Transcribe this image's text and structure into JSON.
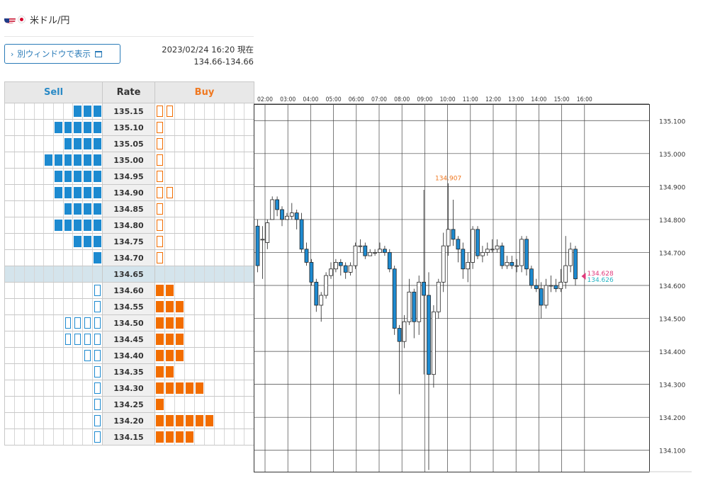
{
  "header": {
    "pair_title": "米ドル/円",
    "separate_window_label": "別ウィンドウで表示",
    "timestamp": "2023/02/24 16:20 現在",
    "range": "134.66-134.66"
  },
  "colors": {
    "sell": "#1d8ad0",
    "buy": "#f26d00",
    "current_row": "#d4e4ec",
    "candle_down": "#1d8ad0",
    "candle_up": "#ffffff",
    "bid_marker": "#e0397b",
    "ask_marker": "#26b5c4",
    "high_label": "#f07820"
  },
  "order_book": {
    "headers": {
      "sell": "Sell",
      "rate": "Rate",
      "buy": "Buy"
    },
    "current_rate": "134.65",
    "rows": [
      {
        "rate": "135.15",
        "sell": 3,
        "sell_outline": 0,
        "buy": 0,
        "buy_outline": 2
      },
      {
        "rate": "135.10",
        "sell": 5,
        "sell_outline": 0,
        "buy": 0,
        "buy_outline": 1
      },
      {
        "rate": "135.05",
        "sell": 4,
        "sell_outline": 0,
        "buy": 0,
        "buy_outline": 1
      },
      {
        "rate": "135.00",
        "sell": 6,
        "sell_outline": 0,
        "buy": 0,
        "buy_outline": 1
      },
      {
        "rate": "134.95",
        "sell": 5,
        "sell_outline": 0,
        "buy": 0,
        "buy_outline": 1
      },
      {
        "rate": "134.90",
        "sell": 5,
        "sell_outline": 0,
        "buy": 0,
        "buy_outline": 2
      },
      {
        "rate": "134.85",
        "sell": 4,
        "sell_outline": 0,
        "buy": 0,
        "buy_outline": 1
      },
      {
        "rate": "134.80",
        "sell": 5,
        "sell_outline": 0,
        "buy": 0,
        "buy_outline": 1
      },
      {
        "rate": "134.75",
        "sell": 3,
        "sell_outline": 0,
        "buy": 0,
        "buy_outline": 1
      },
      {
        "rate": "134.70",
        "sell": 1,
        "sell_outline": 0,
        "buy": 0,
        "buy_outline": 1
      },
      {
        "rate": "134.65",
        "sell": 0,
        "sell_outline": 0,
        "buy": 0,
        "buy_outline": 0
      },
      {
        "rate": "134.60",
        "sell": 0,
        "sell_outline": 1,
        "buy": 2,
        "buy_outline": 0
      },
      {
        "rate": "134.55",
        "sell": 0,
        "sell_outline": 1,
        "buy": 3,
        "buy_outline": 0
      },
      {
        "rate": "134.50",
        "sell": 0,
        "sell_outline": 4,
        "buy": 3,
        "buy_outline": 0
      },
      {
        "rate": "134.45",
        "sell": 0,
        "sell_outline": 4,
        "buy": 3,
        "buy_outline": 0
      },
      {
        "rate": "134.40",
        "sell": 0,
        "sell_outline": 2,
        "buy": 3,
        "buy_outline": 0
      },
      {
        "rate": "134.35",
        "sell": 0,
        "sell_outline": 1,
        "buy": 2,
        "buy_outline": 0
      },
      {
        "rate": "134.30",
        "sell": 0,
        "sell_outline": 1,
        "buy": 5,
        "buy_outline": 0
      },
      {
        "rate": "134.25",
        "sell": 0,
        "sell_outline": 1,
        "buy": 1,
        "buy_outline": 0
      },
      {
        "rate": "134.20",
        "sell": 0,
        "sell_outline": 1,
        "buy": 6,
        "buy_outline": 0
      },
      {
        "rate": "134.15",
        "sell": 0,
        "sell_outline": 1,
        "buy": 4,
        "buy_outline": 0
      }
    ]
  },
  "chart_data": {
    "type": "candlestick",
    "x_ticks": [
      "02:00",
      "03:00",
      "04:00",
      "05:00",
      "06:00",
      "07:00",
      "08:00",
      "09:00",
      "10:00",
      "11:00",
      "12:00",
      "13:00",
      "14:00",
      "15:00",
      "16:00"
    ],
    "y_ticks": [
      "135.100",
      "135.000",
      "134.900",
      "134.800",
      "134.700",
      "134.600",
      "134.500",
      "134.400",
      "134.300",
      "134.200",
      "134.100"
    ],
    "ylim": [
      134.035,
      135.15
    ],
    "high_label": "134.907",
    "bid": "134.628",
    "ask": "134.626",
    "candles": [
      [
        134.78,
        134.66,
        134.8,
        134.64
      ],
      [
        134.74,
        134.74,
        134.78,
        134.62
      ],
      [
        134.73,
        134.79,
        134.8,
        134.71
      ],
      [
        134.8,
        134.86,
        134.87,
        134.8
      ],
      [
        134.86,
        134.83,
        134.87,
        134.81
      ],
      [
        134.83,
        134.8,
        134.84,
        134.78
      ],
      [
        134.8,
        134.81,
        134.82,
        134.8
      ],
      [
        134.81,
        134.82,
        134.85,
        134.8
      ],
      [
        134.82,
        134.8,
        134.83,
        134.77
      ],
      [
        134.8,
        134.71,
        134.82,
        134.7
      ],
      [
        134.71,
        134.67,
        134.73,
        134.66
      ],
      [
        134.67,
        134.61,
        134.68,
        134.6
      ],
      [
        134.61,
        134.54,
        134.62,
        134.52
      ],
      [
        134.54,
        134.57,
        134.58,
        134.49
      ],
      [
        134.57,
        134.63,
        134.64,
        134.56
      ],
      [
        134.63,
        134.65,
        134.67,
        134.62
      ],
      [
        134.65,
        134.67,
        134.68,
        134.64
      ],
      [
        134.67,
        134.66,
        134.68,
        134.63
      ],
      [
        134.66,
        134.64,
        134.67,
        134.62
      ],
      [
        134.64,
        134.66,
        134.67,
        134.63
      ],
      [
        134.66,
        134.72,
        134.73,
        134.65
      ],
      [
        134.72,
        134.72,
        134.74,
        134.7
      ],
      [
        134.72,
        134.69,
        134.73,
        134.68
      ],
      [
        134.69,
        134.7,
        134.71,
        134.69
      ],
      [
        134.7,
        134.7,
        134.71,
        134.69
      ],
      [
        134.7,
        134.71,
        134.73,
        134.7
      ],
      [
        134.71,
        134.7,
        134.72,
        134.69
      ],
      [
        134.7,
        134.65,
        134.71,
        134.64
      ],
      [
        134.65,
        134.47,
        134.66,
        134.45
      ],
      [
        134.47,
        134.43,
        134.48,
        134.27
      ],
      [
        134.43,
        134.49,
        134.51,
        134.41
      ],
      [
        134.49,
        134.58,
        134.62,
        134.48
      ],
      [
        134.58,
        134.49,
        134.59,
        134.44
      ],
      [
        134.49,
        134.61,
        134.63,
        134.45
      ],
      [
        134.61,
        134.57,
        134.89,
        134.33
      ],
      [
        134.57,
        134.33,
        134.64,
        134.04
      ],
      [
        134.33,
        134.52,
        134.54,
        134.29
      ],
      [
        134.52,
        134.61,
        134.62,
        134.5
      ],
      [
        134.61,
        134.72,
        134.76,
        134.58
      ],
      [
        134.72,
        134.77,
        134.91,
        134.69
      ],
      [
        134.77,
        134.74,
        134.86,
        134.72
      ],
      [
        134.74,
        134.71,
        134.75,
        134.67
      ],
      [
        134.71,
        134.65,
        134.73,
        134.62
      ],
      [
        134.65,
        134.67,
        134.7,
        134.61
      ],
      [
        134.67,
        134.77,
        134.78,
        134.65
      ],
      [
        134.77,
        134.69,
        134.78,
        134.68
      ],
      [
        134.69,
        134.7,
        134.72,
        134.67
      ],
      [
        134.7,
        134.71,
        134.73,
        134.69
      ],
      [
        134.71,
        134.71,
        134.74,
        134.7
      ],
      [
        134.71,
        134.72,
        134.74,
        134.7
      ],
      [
        134.72,
        134.66,
        134.73,
        134.65
      ],
      [
        134.66,
        134.67,
        134.69,
        134.65
      ],
      [
        134.67,
        134.66,
        134.69,
        134.65
      ],
      [
        134.66,
        134.66,
        134.68,
        134.64
      ],
      [
        134.66,
        134.74,
        134.75,
        134.64
      ],
      [
        134.74,
        134.65,
        134.75,
        134.63
      ],
      [
        134.65,
        134.6,
        134.66,
        134.59
      ],
      [
        134.6,
        134.59,
        134.62,
        134.58
      ],
      [
        134.59,
        134.54,
        134.61,
        134.5
      ],
      [
        134.54,
        134.6,
        134.62,
        134.53
      ],
      [
        134.6,
        134.6,
        134.63,
        134.58
      ],
      [
        134.6,
        134.59,
        134.62,
        134.58
      ],
      [
        134.59,
        134.61,
        134.65,
        134.58
      ],
      [
        134.61,
        134.66,
        134.75,
        134.59
      ],
      [
        134.66,
        134.71,
        134.73,
        134.64
      ],
      [
        134.71,
        134.62,
        134.72,
        134.6
      ]
    ]
  }
}
